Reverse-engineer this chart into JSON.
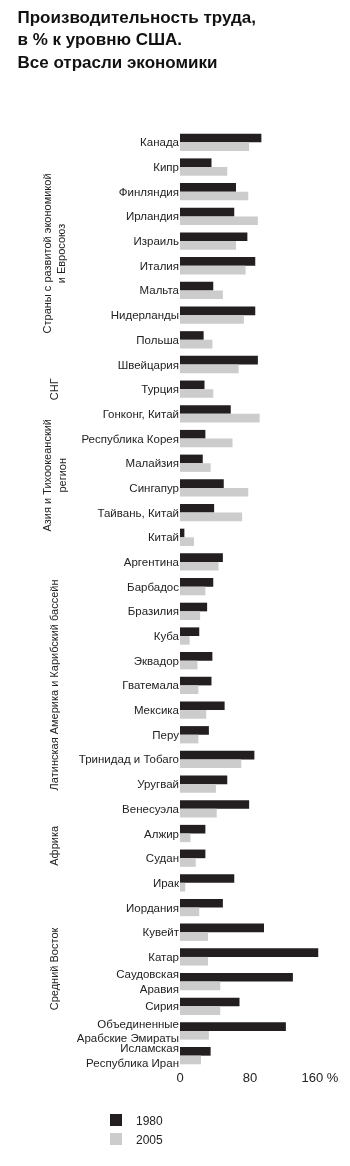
{
  "chart_data": {
    "type": "bar",
    "orientation": "horizontal",
    "title": "Производительность труда,\nв % к уровню США.\nВсе отрасли экономики",
    "categories": [
      "Канада",
      "Кипр",
      "Финляндия",
      "Ирландия",
      "Израиль",
      "Италия",
      "Мальта",
      "Нидерланды",
      "Польша",
      "Швейцария",
      "Турция",
      "Гонконг, Китай",
      "Республика Корея",
      "Малайзия",
      "Сингапур",
      "Тайвань, Китай",
      "Китай",
      "Аргентина",
      "Барбадос",
      "Бразилия",
      "Куба",
      "Эквадор",
      "Гватемала",
      "Мексика",
      "Перу",
      "Тринидад и Тобаго",
      "Уругвай",
      "Венесуэла",
      "Алжир",
      "Судан",
      "Ирак",
      "Иордания",
      "Кувейт",
      "Катар",
      "Саудовская\nАравия",
      "Сирия",
      "Объединенные\nАрабские Эмираты",
      "Исламская\nРеспублика Иран"
    ],
    "series": [
      {
        "name": "1980",
        "color": "#231f20",
        "values": [
          93,
          36,
          64,
          62,
          77,
          86,
          38,
          86,
          27,
          89,
          28,
          58,
          29,
          26,
          50,
          39,
          5,
          49,
          38,
          31,
          22,
          37,
          36,
          51,
          33,
          85,
          54,
          79,
          29,
          29,
          62,
          49,
          96,
          158,
          129,
          68,
          121,
          35
        ]
      },
      {
        "name": "2005",
        "color": "#cccccc",
        "values": [
          79,
          54,
          78,
          89,
          64,
          75,
          49,
          73,
          37,
          67,
          38,
          91,
          60,
          35,
          78,
          71,
          16,
          44,
          29,
          23,
          11,
          20,
          21,
          30,
          21,
          70,
          41,
          42,
          12,
          18,
          6,
          22,
          32,
          32,
          46,
          46,
          33,
          24
        ]
      }
    ],
    "xlim": [
      0,
      160
    ],
    "xticks": [
      0,
      80,
      {
        "value": 160,
        "label": "160 %"
      }
    ],
    "annotations": [
      "Страны с развитой экономикой\nи Евросоюз",
      "СНГ",
      "Азия и Тихоокеанский\nрегион",
      "Латинская Америка и Карибский бассейн",
      "Африка",
      "Средний Восток"
    ],
    "legend": "bottom left"
  }
}
